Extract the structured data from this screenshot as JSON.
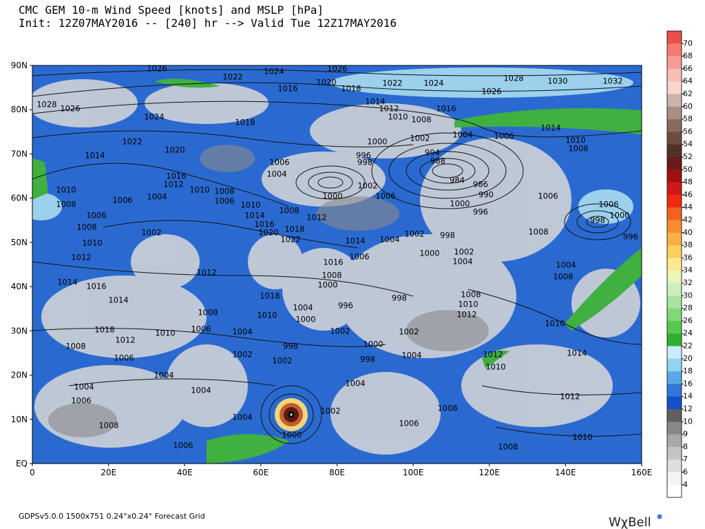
{
  "header": {
    "title": "CMC GEM 10-m Wind Speed [knots] and MSLP [hPa]",
    "subtitle": "Init: 12Z07MAY2016 -- [240] hr --> Valid Tue 12Z17MAY2016"
  },
  "map": {
    "lat_labels": [
      "EQ",
      "10N",
      "20N",
      "30N",
      "40N",
      "50N",
      "60N",
      "70N",
      "80N",
      "90N"
    ],
    "lon_labels": [
      "0",
      "20E",
      "40E",
      "60E",
      "80E",
      "100E",
      "120E",
      "140E",
      "160E"
    ],
    "isobar_labels": [
      "1026",
      "1024",
      "1026",
      "1022",
      "1020",
      "1018",
      "1016",
      "1022",
      "1024",
      "1028",
      "1030",
      "1032",
      "1026",
      "1028",
      "1026",
      "1024",
      "1014",
      "1012",
      "1016",
      "1010",
      "1008",
      "1018",
      "1014",
      "1004",
      "1006",
      "1002",
      "1000",
      "1010",
      "1008",
      "1022",
      "1020",
      "994",
      "996",
      "998",
      "988",
      "1014",
      "1006",
      "1004",
      "1016",
      "1012",
      "984",
      "986",
      "1002",
      "1010",
      "1010",
      "1008",
      "1000",
      "1006",
      "990",
      "1006",
      "1004",
      "1006",
      "1008",
      "1006",
      "1010",
      "1000",
      "1006",
      "1008",
      "996",
      "1000",
      "1014",
      "1012",
      "998",
      "1006",
      "1008",
      "1016",
      "1018",
      "1020",
      "1002",
      "1008",
      "1002",
      "998",
      "996",
      "1022",
      "1014",
      "1004",
      "1010",
      "1000",
      "1002",
      "1012",
      "1006",
      "1016",
      "1004",
      "1004",
      "1012",
      "1008",
      "1008",
      "1014",
      "1016",
      "1000",
      "1014",
      "1018",
      "1008",
      "998",
      "996",
      "1010",
      "1004",
      "1008",
      "1010",
      "1012",
      "1000",
      "1010",
      "1018",
      "1006",
      "1004",
      "1010",
      "1002",
      "1002",
      "1012",
      "1000",
      "998",
      "1008",
      "1002",
      "1006",
      "1004",
      "1002",
      "998",
      "1012",
      "1014",
      "1010",
      "1004",
      "1004",
      "1004",
      "1004",
      "1012",
      "1006",
      "1002",
      "1008",
      "1004",
      "1008",
      "1006",
      "1000",
      "1010",
      "1006",
      "1008"
    ]
  },
  "colorbar": {
    "labels": [
      70,
      68,
      66,
      64,
      62,
      60,
      58,
      56,
      54,
      52,
      50,
      48,
      46,
      44,
      42,
      40,
      38,
      36,
      34,
      32,
      30,
      28,
      26,
      24,
      22,
      20,
      18,
      16,
      14,
      12,
      10,
      9,
      8,
      7,
      6,
      4
    ],
    "colors": [
      "#e8504a",
      "#f27b74",
      "#f59c94",
      "#f8bdb5",
      "#fad6d0",
      "#c8b4ac",
      "#a88e84",
      "#8a6a5e",
      "#6e4c40",
      "#52302a",
      "#6a1a1a",
      "#a01010",
      "#d01818",
      "#f02a10",
      "#f46020",
      "#f78c30",
      "#f9b040",
      "#fbd060",
      "#fbe890",
      "#ecf6b8",
      "#cdeec0",
      "#a8e4a0",
      "#80d878",
      "#58c850",
      "#30b030",
      "#c8ecf8",
      "#90d4f0",
      "#5aa8e8",
      "#3278d8",
      "#1450c8",
      "#606060",
      "#888888",
      "#a8a8a8",
      "#c4c4c4",
      "#dedede",
      "#f4f4f4",
      "#ffffff"
    ]
  },
  "footer": {
    "grid_info": "GDPSv5.0.0 1500x751 0.24°x0.24° Forecast Grid",
    "brand": "WχBell"
  }
}
